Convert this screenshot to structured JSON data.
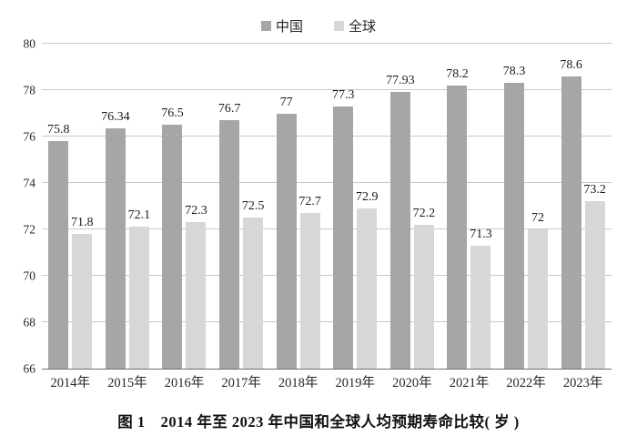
{
  "caption": "图 1　2014 年至 2023 年中国和全球人均预期寿命比较( 岁 )",
  "colors": {
    "china_bar": "#a6a6a6",
    "global_bar": "#d7d7d7",
    "gridline": "#c9c9c9",
    "axis_line": "#6f6f6f",
    "text": "#262626"
  },
  "chart_data": {
    "type": "bar",
    "title": "图 1　2014 年至 2023 年中国和全球人均预期寿命比较( 岁 )",
    "categories": [
      "2014年",
      "2015年",
      "2016年",
      "2017年",
      "2018年",
      "2019年",
      "2020年",
      "2021年",
      "2022年",
      "2023年"
    ],
    "series": [
      {
        "name": "中国",
        "color": "#a6a6a6",
        "values": [
          75.8,
          76.34,
          76.5,
          76.7,
          77,
          77.3,
          77.93,
          78.2,
          78.3,
          78.6
        ]
      },
      {
        "name": "全球",
        "color": "#d7d7d7",
        "values": [
          71.8,
          72.1,
          72.3,
          72.5,
          72.7,
          72.9,
          72.2,
          71.3,
          72,
          73.2
        ]
      }
    ],
    "xlabel": "",
    "ylabel": "",
    "ylim": [
      66,
      80
    ],
    "yticks": [
      66,
      68,
      70,
      72,
      74,
      76,
      78,
      80
    ],
    "grid": true,
    "legend_position": "top",
    "data_labels": true
  }
}
